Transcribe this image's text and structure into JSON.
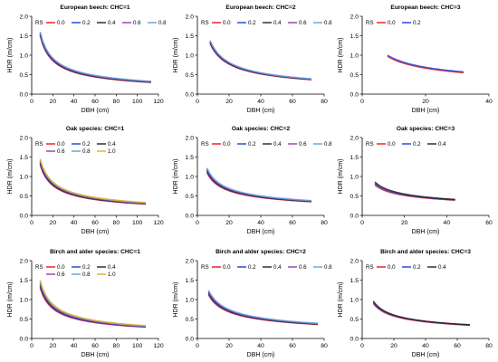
{
  "chart_data": [
    {
      "type": "line",
      "title": "European beech: CHC=1",
      "xlabel": "DBH (cm)",
      "ylabel": "HDR (m/cm)",
      "xlim": [
        0,
        120
      ],
      "ylim": [
        0,
        2.0
      ],
      "xticks": [
        "0",
        "20",
        "40",
        "60",
        "80",
        "100",
        "120"
      ],
      "yticks": [
        "0.0",
        "0.5",
        "1.0",
        "1.5",
        "2.0"
      ],
      "legend_title": "RS",
      "legend_rows": [
        [
          "0.0",
          "0.2",
          "0.4",
          "0.6",
          "0.8"
        ]
      ],
      "series": [
        {
          "name": "0.0",
          "color": "#e8141f",
          "x": [
            8,
            113
          ],
          "y": [
            1.5,
            0.3
          ]
        },
        {
          "name": "0.2",
          "color": "#1f3fd6",
          "x": [
            8,
            113
          ],
          "y": [
            1.52,
            0.31
          ]
        },
        {
          "name": "0.4",
          "color": "#222222",
          "x": [
            8,
            113
          ],
          "y": [
            1.55,
            0.31
          ]
        },
        {
          "name": "0.6",
          "color": "#8e3fa6",
          "x": [
            8,
            113
          ],
          "y": [
            1.57,
            0.32
          ]
        },
        {
          "name": "0.8",
          "color": "#5aa3e0",
          "x": [
            8,
            113
          ],
          "y": [
            1.6,
            0.33
          ]
        }
      ]
    },
    {
      "type": "line",
      "title": "European beech: CHC=2",
      "xlabel": "DBH (cm)",
      "ylabel": "HDR (m/cm)",
      "xlim": [
        0,
        80
      ],
      "ylim": [
        0,
        2.0
      ],
      "xticks": [
        "0",
        "20",
        "40",
        "60",
        "80"
      ],
      "yticks": [
        "0.0",
        "0.5",
        "1.0",
        "1.5",
        "2.0"
      ],
      "legend_title": "RS",
      "legend_rows": [
        [
          "0.0",
          "0.2",
          "0.4",
          "0.6",
          "0.8"
        ]
      ],
      "series": [
        {
          "name": "0.0",
          "color": "#e8141f",
          "x": [
            8,
            72
          ],
          "y": [
            1.3,
            0.37
          ]
        },
        {
          "name": "0.2",
          "color": "#1f3fd6",
          "x": [
            8,
            72
          ],
          "y": [
            1.32,
            0.38
          ]
        },
        {
          "name": "0.4",
          "color": "#222222",
          "x": [
            8,
            72
          ],
          "y": [
            1.34,
            0.38
          ]
        },
        {
          "name": "0.6",
          "color": "#8e3fa6",
          "x": [
            8,
            72
          ],
          "y": [
            1.36,
            0.39
          ]
        },
        {
          "name": "0.8",
          "color": "#5aa3e0",
          "x": [
            8,
            72
          ],
          "y": [
            1.38,
            0.39
          ]
        }
      ]
    },
    {
      "type": "line",
      "title": "European beech: CHC=3",
      "xlabel": "DBH (cm)",
      "ylabel": "HDR (m/cm)",
      "xlim": [
        0,
        40
      ],
      "ylim": [
        0,
        2.0
      ],
      "xticks": [
        "0",
        "20",
        "40"
      ],
      "yticks": [
        "0.0",
        "0.5",
        "1.0",
        "1.5",
        "2.0"
      ],
      "legend_title": "RS",
      "legend_rows": [
        [
          "0.0",
          "0.2"
        ]
      ],
      "series": [
        {
          "name": "0.0",
          "color": "#e8141f",
          "x": [
            8,
            32
          ],
          "y": [
            0.97,
            0.55
          ]
        },
        {
          "name": "0.2",
          "color": "#1f3fd6",
          "x": [
            8,
            32
          ],
          "y": [
            1.0,
            0.57
          ]
        }
      ]
    },
    {
      "type": "line",
      "title": "Oak species: CHC=1",
      "xlabel": "DBH (cm)",
      "ylabel": "HDR (m/cm)",
      "xlim": [
        0,
        120
      ],
      "ylim": [
        0,
        2.0
      ],
      "xticks": [
        "0",
        "20",
        "40",
        "60",
        "80",
        "100",
        "120"
      ],
      "yticks": [
        "0.0",
        "0.5",
        "1.0",
        "1.5",
        "2.0"
      ],
      "legend_title": "RS",
      "legend_rows": [
        [
          "0.0",
          "0.2",
          "0.4"
        ],
        [
          "0.6",
          "0.8",
          "1.0"
        ]
      ],
      "series": [
        {
          "name": "0.0",
          "color": "#e8141f",
          "x": [
            8,
            108
          ],
          "y": [
            1.3,
            0.29
          ]
        },
        {
          "name": "0.2",
          "color": "#1f3fd6",
          "x": [
            8,
            108
          ],
          "y": [
            1.33,
            0.3
          ]
        },
        {
          "name": "0.4",
          "color": "#222222",
          "x": [
            8,
            108
          ],
          "y": [
            1.36,
            0.3
          ]
        },
        {
          "name": "0.6",
          "color": "#8e3fa6",
          "x": [
            8,
            108
          ],
          "y": [
            1.39,
            0.31
          ]
        },
        {
          "name": "0.8",
          "color": "#5aa3e0",
          "x": [
            8,
            108
          ],
          "y": [
            1.42,
            0.32
          ]
        },
        {
          "name": "1.0",
          "color": "#e3b021",
          "x": [
            8,
            108
          ],
          "y": [
            1.45,
            0.33
          ]
        }
      ]
    },
    {
      "type": "line",
      "title": "Oak species: CHC=2",
      "xlabel": "DBH (cm)",
      "ylabel": "HDR (m/cm)",
      "xlim": [
        0,
        80
      ],
      "ylim": [
        0,
        2.0
      ],
      "xticks": [
        "0",
        "20",
        "40",
        "60",
        "80"
      ],
      "yticks": [
        "0.0",
        "0.5",
        "1.0",
        "1.5",
        "2.0"
      ],
      "legend_title": "RS",
      "legend_rows": [
        [
          "0.0",
          "0.2",
          "0.4",
          "0.6",
          "0.8"
        ]
      ],
      "series": [
        {
          "name": "0.0",
          "color": "#e8141f",
          "x": [
            6,
            72
          ],
          "y": [
            1.1,
            0.35
          ]
        },
        {
          "name": "0.2",
          "color": "#1f3fd6",
          "x": [
            6,
            72
          ],
          "y": [
            1.13,
            0.36
          ]
        },
        {
          "name": "0.4",
          "color": "#222222",
          "x": [
            6,
            72
          ],
          "y": [
            1.16,
            0.36
          ]
        },
        {
          "name": "0.6",
          "color": "#8e3fa6",
          "x": [
            6,
            72
          ],
          "y": [
            1.19,
            0.37
          ]
        },
        {
          "name": "0.8",
          "color": "#5aa3e0",
          "x": [
            6,
            72
          ],
          "y": [
            1.22,
            0.38
          ]
        }
      ]
    },
    {
      "type": "line",
      "title": "Oak species: CHC=3",
      "xlabel": "DBH (cm)",
      "ylabel": "HDR (m/cm)",
      "xlim": [
        0,
        60
      ],
      "ylim": [
        0,
        2.0
      ],
      "xticks": [
        "0",
        "20",
        "40",
        "60"
      ],
      "yticks": [
        "0.0",
        "0.5",
        "1.0",
        "1.5",
        "2.0"
      ],
      "legend_title": "RS",
      "legend_rows": [
        [
          "0.0",
          "0.2",
          "0.4"
        ]
      ],
      "series": [
        {
          "name": "0.0",
          "color": "#e8141f",
          "x": [
            6,
            44
          ],
          "y": [
            0.78,
            0.39
          ]
        },
        {
          "name": "0.2",
          "color": "#1f3fd6",
          "x": [
            6,
            44
          ],
          "y": [
            0.82,
            0.4
          ]
        },
        {
          "name": "0.4",
          "color": "#222222",
          "x": [
            6,
            44
          ],
          "y": [
            0.86,
            0.41
          ]
        }
      ]
    },
    {
      "type": "line",
      "title": "Birch and alder species: CHC=1",
      "xlabel": "DBH (cm)",
      "ylabel": "HDR (m/cm)",
      "xlim": [
        0,
        120
      ],
      "ylim": [
        0,
        2.0
      ],
      "xticks": [
        "0",
        "20",
        "40",
        "60",
        "80",
        "100",
        "120"
      ],
      "yticks": [
        "0.0",
        "0.5",
        "1.0",
        "1.5",
        "2.0"
      ],
      "legend_title": "RS",
      "legend_rows": [
        [
          "0.0",
          "0.2",
          "0.4"
        ],
        [
          "0.6",
          "0.8",
          "1.0"
        ]
      ],
      "series": [
        {
          "name": "0.0",
          "color": "#e8141f",
          "x": [
            8,
            108
          ],
          "y": [
            1.3,
            0.29
          ]
        },
        {
          "name": "0.2",
          "color": "#1f3fd6",
          "x": [
            8,
            108
          ],
          "y": [
            1.34,
            0.3
          ]
        },
        {
          "name": "0.4",
          "color": "#222222",
          "x": [
            8,
            108
          ],
          "y": [
            1.38,
            0.31
          ]
        },
        {
          "name": "0.6",
          "color": "#8e3fa6",
          "x": [
            8,
            108
          ],
          "y": [
            1.42,
            0.31
          ]
        },
        {
          "name": "0.8",
          "color": "#5aa3e0",
          "x": [
            8,
            108
          ],
          "y": [
            1.46,
            0.32
          ]
        },
        {
          "name": "1.0",
          "color": "#e3b021",
          "x": [
            8,
            108
          ],
          "y": [
            1.5,
            0.33
          ]
        }
      ]
    },
    {
      "type": "line",
      "title": "Birch and alder species: CHC=2",
      "xlabel": "DBH (cm)",
      "ylabel": "HDR (m/cm)",
      "xlim": [
        0,
        80
      ],
      "ylim": [
        0,
        2.0
      ],
      "xticks": [
        "0",
        "20",
        "40",
        "60",
        "80"
      ],
      "yticks": [
        "0.0",
        "0.5",
        "1.0",
        "1.5",
        "2.0"
      ],
      "legend_title": "RS",
      "legend_rows": [
        [
          "0.0",
          "0.2",
          "0.4",
          "0.6",
          "0.8"
        ]
      ],
      "series": [
        {
          "name": "0.0",
          "color": "#e8141f",
          "x": [
            7,
            76
          ],
          "y": [
            1.12,
            0.36
          ]
        },
        {
          "name": "0.2",
          "color": "#1f3fd6",
          "x": [
            7,
            76
          ],
          "y": [
            1.15,
            0.37
          ]
        },
        {
          "name": "0.4",
          "color": "#222222",
          "x": [
            7,
            76
          ],
          "y": [
            1.18,
            0.37
          ]
        },
        {
          "name": "0.6",
          "color": "#8e3fa6",
          "x": [
            7,
            76
          ],
          "y": [
            1.21,
            0.38
          ]
        },
        {
          "name": "0.8",
          "color": "#5aa3e0",
          "x": [
            7,
            76
          ],
          "y": [
            1.24,
            0.39
          ]
        }
      ]
    },
    {
      "type": "line",
      "title": "Birch and alder species: CHC=3",
      "xlabel": "DBH (cm)",
      "ylabel": "HDR (m/cm)",
      "xlim": [
        0,
        80
      ],
      "ylim": [
        0,
        2.0
      ],
      "xticks": [
        "0",
        "20",
        "40",
        "60",
        "80"
      ],
      "yticks": [
        "0.0",
        "0.5",
        "1.0",
        "1.5",
        "2.0"
      ],
      "legend_title": "RS",
      "legend_rows": [
        [
          "0.0",
          "0.2",
          "0.4"
        ]
      ],
      "series": [
        {
          "name": "0.0",
          "color": "#e8141f",
          "x": [
            7,
            68
          ],
          "y": [
            0.9,
            0.34
          ]
        },
        {
          "name": "0.2",
          "color": "#1f3fd6",
          "x": [
            7,
            68
          ],
          "y": [
            0.93,
            0.35
          ]
        },
        {
          "name": "0.4",
          "color": "#222222",
          "x": [
            7,
            68
          ],
          "y": [
            0.96,
            0.35
          ]
        }
      ]
    }
  ]
}
